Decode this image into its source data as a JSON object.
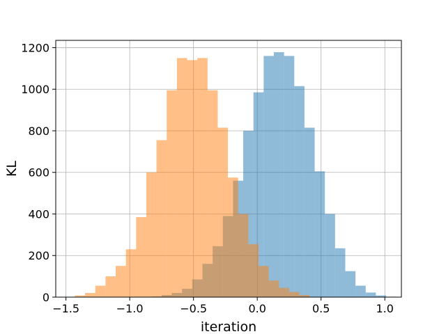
{
  "chart_data": {
    "type": "bar",
    "title": "",
    "xlabel": "iteration",
    "ylabel": "KL",
    "xlim": [
      -1.58,
      1.13
    ],
    "ylim": [
      0,
      1235
    ],
    "xticks": [
      -1.5,
      -1.0,
      -0.5,
      0.0,
      0.5,
      1.0
    ],
    "xtick_labels": [
      "−1.5",
      "−1.0",
      "−0.5",
      "0.0",
      "0.5",
      "1.0"
    ],
    "yticks": [
      0,
      200,
      400,
      600,
      800,
      1000,
      1200
    ],
    "ytick_labels": [
      "0",
      "200",
      "400",
      "600",
      "800",
      "1000",
      "1200"
    ],
    "grid": true,
    "legend": "none",
    "series": [
      {
        "color": "#1f77b4",
        "opacity": 0.5,
        "bin_width": 0.08,
        "bins": [
          [
            -0.83,
            3
          ],
          [
            -0.75,
            10
          ],
          [
            -0.67,
            20
          ],
          [
            -0.59,
            40
          ],
          [
            -0.51,
            85
          ],
          [
            -0.43,
            160
          ],
          [
            -0.35,
            245
          ],
          [
            -0.27,
            390
          ],
          [
            -0.19,
            560
          ],
          [
            -0.11,
            800
          ],
          [
            -0.03,
            985
          ],
          [
            0.05,
            1160
          ],
          [
            0.13,
            1178
          ],
          [
            0.21,
            1160
          ],
          [
            0.29,
            1015
          ],
          [
            0.37,
            815
          ],
          [
            0.45,
            605
          ],
          [
            0.53,
            400
          ],
          [
            0.61,
            235
          ],
          [
            0.69,
            125
          ],
          [
            0.77,
            55
          ],
          [
            0.85,
            22
          ],
          [
            0.93,
            8
          ],
          [
            1.01,
            2
          ]
        ]
      },
      {
        "color": "#ff7f0e",
        "opacity": 0.5,
        "bin_width": 0.08,
        "bins": [
          [
            -1.43,
            8
          ],
          [
            -1.35,
            20
          ],
          [
            -1.27,
            55
          ],
          [
            -1.19,
            100
          ],
          [
            -1.11,
            150
          ],
          [
            -1.03,
            230
          ],
          [
            -0.95,
            385
          ],
          [
            -0.87,
            600
          ],
          [
            -0.79,
            755
          ],
          [
            -0.71,
            995
          ],
          [
            -0.63,
            1150
          ],
          [
            -0.55,
            1140
          ],
          [
            -0.47,
            1150
          ],
          [
            -0.39,
            995
          ],
          [
            -0.31,
            815
          ],
          [
            -0.23,
            575
          ],
          [
            -0.15,
            400
          ],
          [
            -0.07,
            255
          ],
          [
            0.01,
            150
          ],
          [
            0.09,
            80
          ],
          [
            0.17,
            45
          ],
          [
            0.25,
            25
          ],
          [
            0.33,
            10
          ]
        ]
      }
    ]
  }
}
